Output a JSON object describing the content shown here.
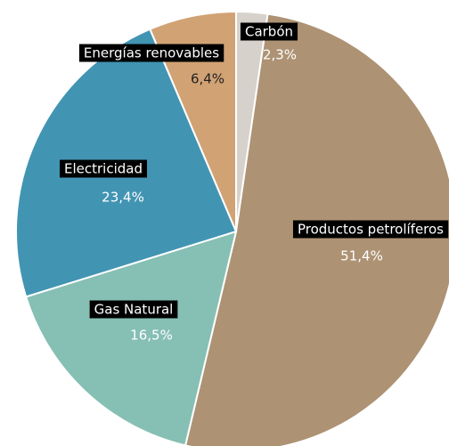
{
  "chart_data": {
    "type": "pie",
    "categories": [
      "Carbón",
      "Productos petrolíferos",
      "Gas Natural",
      "Electricidad",
      "Energías renovables"
    ],
    "values": [
      2.3,
      51.4,
      16.5,
      23.4,
      6.4
    ],
    "value_labels": [
      "2,3%",
      "51,4%",
      "16,5%",
      "23,4%",
      "6,4%"
    ],
    "colors": [
      "#d6d1cb",
      "#ad9274",
      "#86bfb4",
      "#4294b3",
      "#d1a274"
    ]
  }
}
